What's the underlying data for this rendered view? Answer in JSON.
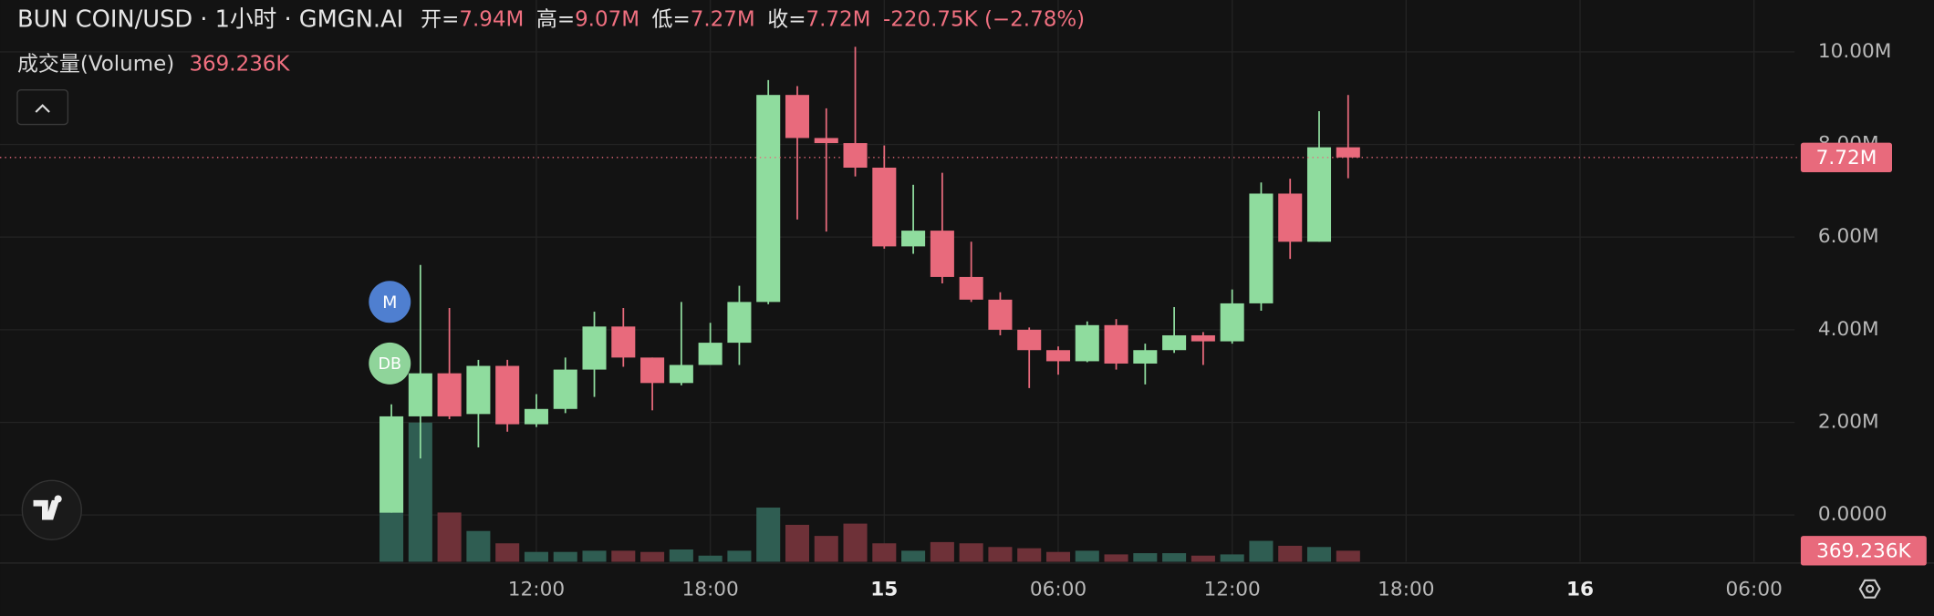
{
  "header": {
    "title": "BUN COIN/USD · 1小时 · GMGN.AI",
    "fields": [
      {
        "label": "开=",
        "value": "7.94M"
      },
      {
        "label": "高=",
        "value": "9.07M"
      },
      {
        "label": "低=",
        "value": "7.27M"
      },
      {
        "label": "收=",
        "value": "7.72M"
      }
    ],
    "change": "-220.75K (−2.78%)"
  },
  "markers": [
    "M",
    "DB"
  ],
  "chart_data": {
    "type": "candlestick",
    "x": [
      7,
      8,
      9,
      10,
      11,
      12,
      13,
      14,
      15,
      16,
      17,
      18,
      19,
      20,
      21,
      22,
      23,
      24,
      25,
      26,
      27,
      28,
      29,
      30,
      31,
      32,
      33,
      34,
      35,
      36,
      37,
      38,
      39,
      40
    ],
    "open": [
      0.05,
      2.13,
      3.06,
      2.18,
      3.22,
      1.96,
      2.29,
      3.14,
      4.07,
      3.4,
      2.85,
      3.24,
      3.72,
      4.6,
      9.07,
      8.14,
      8.03,
      7.5,
      5.8,
      6.14,
      5.14,
      4.65,
      4.0,
      3.56,
      3.32,
      4.1,
      3.27,
      3.56,
      3.88,
      3.75,
      4.57,
      6.94,
      5.9,
      7.94
    ],
    "high": [
      2.39,
      5.4,
      4.47,
      3.35,
      3.35,
      2.61,
      3.4,
      4.39,
      4.47,
      3.4,
      4.6,
      4.15,
      4.95,
      9.39,
      9.26,
      8.78,
      10.11,
      7.98,
      7.13,
      7.39,
      5.9,
      4.81,
      4.05,
      3.64,
      4.18,
      4.23,
      3.7,
      4.49,
      3.95,
      4.87,
      7.18,
      7.26,
      8.72,
      9.07
    ],
    "low": [
      0.05,
      1.22,
      2.07,
      1.46,
      1.8,
      1.9,
      2.2,
      2.55,
      3.2,
      2.26,
      2.8,
      3.3,
      3.24,
      4.55,
      6.38,
      6.12,
      7.31,
      5.75,
      5.64,
      5.0,
      4.6,
      3.88,
      2.74,
      3.03,
      3.3,
      3.14,
      2.82,
      3.5,
      3.24,
      3.7,
      4.41,
      5.53,
      5.9,
      7.27
    ],
    "close": [
      2.13,
      3.06,
      2.13,
      3.22,
      1.96,
      2.29,
      3.14,
      4.07,
      3.4,
      2.85,
      3.24,
      3.72,
      4.6,
      9.07,
      8.14,
      8.03,
      7.5,
      5.8,
      6.14,
      5.14,
      4.65,
      4.0,
      3.56,
      3.32,
      4.1,
      3.27,
      3.56,
      3.88,
      3.75,
      4.57,
      6.94,
      5.9,
      7.94,
      7.72
    ],
    "up_color": "#8fdc9e",
    "down_color": "#e86a7c",
    "volume": {
      "name": "成交量(Volume)",
      "values": [
        4838,
        4633,
        1640,
        1025,
        615,
        328,
        328,
        369,
        369,
        328,
        410,
        205,
        369,
        1804,
        1230,
        861,
        1271,
        615,
        369,
        656,
        615,
        492,
        451,
        328,
        369,
        246,
        287,
        287,
        205,
        246,
        697,
        533,
        492,
        369.236
      ],
      "last_value_label": "369.236K",
      "up_color": "#2f5d52",
      "down_color": "#6e3138"
    },
    "last_price_label": "7.72M",
    "xlim": [
      -6.5,
      55.4
    ],
    "xticks": [
      {
        "value": 12,
        "label": "12:00"
      },
      {
        "value": 18,
        "label": "18:00"
      },
      {
        "value": 24,
        "label": "15"
      },
      {
        "value": 30,
        "label": "06:00"
      },
      {
        "value": 36,
        "label": "12:00"
      },
      {
        "value": 42,
        "label": "18:00"
      },
      {
        "value": 48,
        "label": "16"
      },
      {
        "value": 54,
        "label": "06:00"
      }
    ],
    "ylim": [
      -1.01,
      11.12
    ],
    "yticks": [
      {
        "value": 0,
        "label": "0.0000"
      },
      {
        "value": 2,
        "label": "2.00M"
      },
      {
        "value": 4,
        "label": "4.00M"
      },
      {
        "value": 6,
        "label": "6.00M"
      },
      {
        "value": 8,
        "label": "8.00M"
      },
      {
        "value": 10,
        "label": "10.00M"
      }
    ],
    "grid": true
  }
}
